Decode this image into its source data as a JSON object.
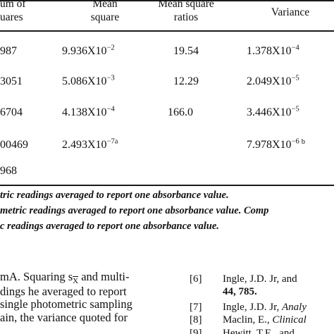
{
  "table": {
    "headers": {
      "sum_of_squares": [
        "um of",
        "uares"
      ],
      "mean_square": [
        "Mean",
        "square"
      ],
      "mean_square_ratios": [
        "Mean square",
        "ratios"
      ],
      "variance": "Variance"
    },
    "rows": [
      {
        "ss": "987",
        "ms_base": "9.936X10",
        "ms_exp": "−2",
        "ms_note": "",
        "ratio": "19.54",
        "var_base": "1.378X10",
        "var_exp": "−4",
        "var_note": ""
      },
      {
        "ss": "3051",
        "ms_base": "5.086X10",
        "ms_exp": "−3",
        "ms_note": "",
        "ratio": "12.29",
        "var_base": "2.049X10",
        "var_exp": "−5",
        "var_note": ""
      },
      {
        "ss": "6704",
        "ms_base": "4.138X10",
        "ms_exp": "−4",
        "ms_note": "",
        "ratio": "166.0",
        "var_base": "3.446X10",
        "var_exp": "−5",
        "var_note": ""
      },
      {
        "ss": "00469",
        "ms_base": "2.493X10",
        "ms_exp": "−7",
        "ms_note": "a",
        "ratio": "",
        "var_base": "7.978X10",
        "var_exp": "−6",
        "var_note": "b"
      },
      {
        "ss": "968",
        "ms_base": "",
        "ms_exp": "",
        "ms_note": "",
        "ratio": "",
        "var_base": "",
        "var_exp": "",
        "var_note": ""
      }
    ]
  },
  "footnotes": [
    "tric readings averaged to report one absorbance value.",
    "metric readings averaged to report one absorbance value. Comp",
    "c readings averaged to report one absorbance value."
  ],
  "body": {
    "lines": [
      {
        "pre": "mA. Squaring s",
        "sub": "X",
        "post": " and multi-"
      },
      {
        "pre": "dings he averaged to report",
        "sub": "",
        "post": ""
      },
      {
        "pre": "single photometric sampling",
        "sub": "",
        "post": ""
      },
      {
        "pre": "ain, the variance quoted for",
        "sub": "",
        "post": ""
      }
    ]
  },
  "references": [
    {
      "num": "[6]",
      "text": "Ingle, J.D. Jr, and",
      "italic": "",
      "bold": ""
    },
    {
      "num": "",
      "text": "",
      "italic": "",
      "bold": "44, 785."
    },
    {
      "num": "[7]",
      "text": "Ingle, J.D. Jr, ",
      "italic": "Analy",
      "bold": ""
    },
    {
      "num": "[8]",
      "text": "Maclin, E., ",
      "italic": "Clinical",
      "bold": ""
    },
    {
      "num": "[9]",
      "text": "Hewitt, T.E., and",
      "italic": "",
      "bold": ""
    }
  ]
}
